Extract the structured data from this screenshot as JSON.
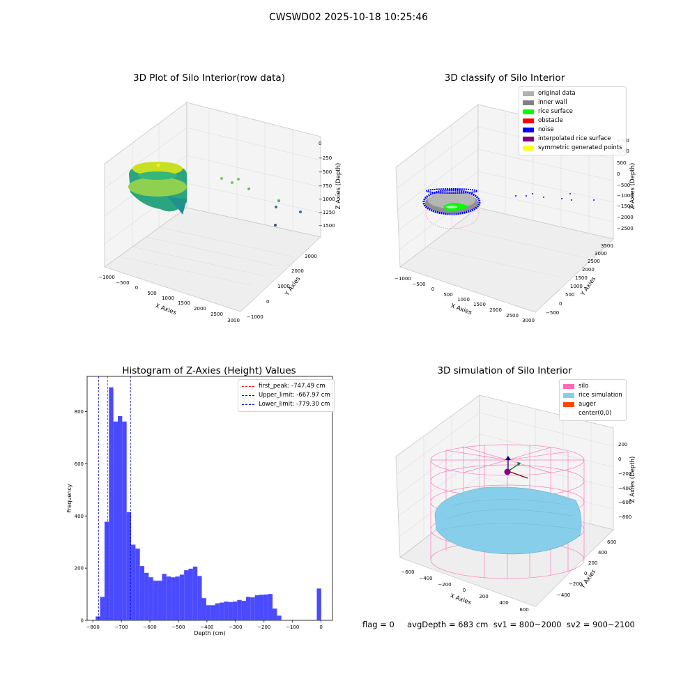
{
  "suptitle": "CWSWD02 2025-10-18 10:25:46",
  "footer": "flag = 0     avgDepth = 683 cm  sv1 = 800~2000  sv2 = 900~2100",
  "colors": {
    "hist_bar": "#4a4aff",
    "first_peak_line": "#ff0000",
    "limit_line": "#0000cc",
    "silo": "#ff69b4",
    "rice": "#87cefa",
    "auger": "#ff4500"
  },
  "chart_data": [
    {
      "type": "scatter3d",
      "title": "3D Plot of Silo Interior(row data)",
      "xlabel": "X Axies",
      "ylabel": "Y Axies",
      "zlabel": "Z Axies (Depth)",
      "x_ticks": [
        "−1000",
        "−500",
        "0",
        "500",
        "1000",
        "1500",
        "2000",
        "2500",
        "3000"
      ],
      "y_ticks": [
        "−1000",
        "0",
        "1000",
        "2000",
        "3000"
      ],
      "z_ticks": [
        "0",
        "−250",
        "−500",
        "−750",
        "−1000",
        "−1250",
        "−1500"
      ]
    },
    {
      "type": "scatter3d",
      "title": "3D classify of Silo Interior",
      "xlabel": "X Axies",
      "ylabel": "Y Axies",
      "zlabel": "Z Axies (Depth)",
      "x_ticks": [
        "−1000",
        "−500",
        "0",
        "500",
        "1000",
        "1500",
        "2000",
        "2500",
        "3000"
      ],
      "y_ticks": [
        "−500",
        "0",
        "500",
        "1000",
        "1500",
        "2000",
        "2500",
        "3000",
        "3500"
      ],
      "z_ticks": [
        "1500",
        "1000",
        "500",
        "0",
        "−500",
        "−1000",
        "−1500",
        "−2000",
        "−2500"
      ],
      "legend": [
        {
          "label": "original data",
          "color": "#b0b0b0"
        },
        {
          "label": "inner wall",
          "color": "#808080"
        },
        {
          "label": "rice surface",
          "color": "#00ff00"
        },
        {
          "label": "obstacle",
          "color": "#ff0000"
        },
        {
          "label": "noise",
          "color": "#0000ff"
        },
        {
          "label": "interpolated rice surface",
          "color": "#800080"
        },
        {
          "label": "symmetric generated points",
          "color": "#ffff00"
        }
      ]
    },
    {
      "type": "bar",
      "title": "Histogram of Z-Axies (Height) Values",
      "xlabel": "Depth (cm)",
      "ylabel": "Frequency",
      "xlim": [
        -820,
        40
      ],
      "ylim": [
        0,
        935
      ],
      "x_ticks": [
        -800,
        -700,
        -600,
        -500,
        -400,
        -300,
        -200,
        -100,
        0
      ],
      "y_ticks": [
        0,
        200,
        400,
        600,
        800
      ],
      "bin_width": 15.5,
      "bin_starts": [
        -790,
        -774.5,
        -759,
        -743.5,
        -728,
        -712.5,
        -697,
        -681.5,
        -666,
        -650.5,
        -635,
        -619.5,
        -604,
        -588.5,
        -573,
        -557.5,
        -542,
        -526.5,
        -511,
        -495.5,
        -480,
        -464.5,
        -449,
        -433.5,
        -418,
        -402.5,
        -387,
        -371.5,
        -356,
        -340.5,
        -325,
        -309.5,
        -294,
        -278.5,
        -263,
        -247.5,
        -232,
        -216.5,
        -201,
        -185.5,
        -170,
        -154.5,
        -139,
        -123.5,
        -108,
        -92.5,
        -77,
        -61.5,
        -46,
        -30.5,
        -15
      ],
      "values": [
        15,
        90,
        378,
        893,
        762,
        783,
        762,
        415,
        290,
        275,
        208,
        182,
        165,
        152,
        152,
        178,
        168,
        165,
        168,
        175,
        192,
        198,
        206,
        170,
        85,
        58,
        58,
        65,
        68,
        72,
        70,
        72,
        78,
        75,
        90,
        88,
        96,
        98,
        99,
        101,
        45,
        18,
        0,
        0,
        0,
        0,
        0,
        0,
        0,
        0,
        122
      ],
      "lines": [
        {
          "label": "first_peak: -747.49 cm",
          "x": -747.49,
          "color": "#ff0000"
        },
        {
          "label": "Upper_limit: -667.97 cm",
          "x": -667.97,
          "color": "#0000cc"
        },
        {
          "label": "Lower_limit: -779.30 cm",
          "x": -779.3,
          "color": "#0000cc"
        }
      ]
    },
    {
      "type": "surface3d",
      "title": "3D simulation of Silo Interior",
      "xlabel": "X Axies",
      "ylabel": "Y Axies",
      "zlabel": "Z Axies (Depth)",
      "x_ticks": [
        "−600",
        "−400",
        "−200",
        "0",
        "200",
        "400",
        "600"
      ],
      "y_ticks": [
        "−400",
        "−200",
        "0",
        "200",
        "400",
        "600"
      ],
      "z_ticks": [
        "200",
        "0",
        "−200",
        "−400",
        "−600",
        "−800"
      ],
      "legend": [
        {
          "label": "silo",
          "color": "#ff69b4"
        },
        {
          "label": "rice simulation",
          "color": "#87ceeb"
        },
        {
          "label": "auger",
          "color": "#ff4500"
        },
        {
          "label": "center(0,0)",
          "color": ""
        }
      ]
    }
  ]
}
